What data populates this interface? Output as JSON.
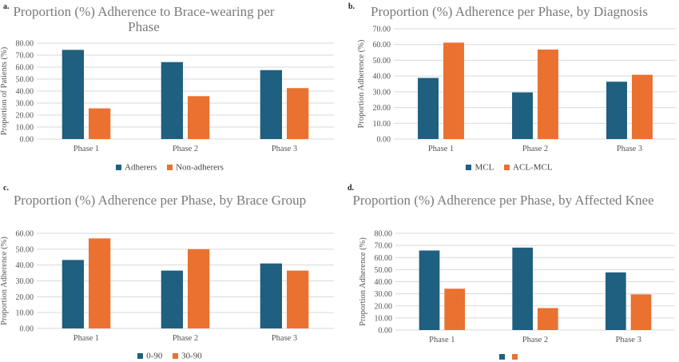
{
  "colors": {
    "series1": "#1f5f7f",
    "series2": "#ea7130",
    "grid": "#d9d9d9",
    "axis_text": "#555555"
  },
  "chart_data": [
    {
      "id": "a",
      "panel_label": "a.",
      "type": "bar",
      "title": "Proportion (%) Adherence to Brace-wearing per Phase",
      "categories": [
        "Phase 1",
        "Phase 2",
        "Phase 3"
      ],
      "series": [
        {
          "name": "Adherers",
          "values": [
            74.4,
            64.2,
            57.5
          ]
        },
        {
          "name": "Non-adherers",
          "values": [
            25.6,
            35.8,
            42.5
          ]
        }
      ],
      "ylabel": "Proportion of Patients (%)",
      "xlabel": "",
      "ylim": [
        0,
        80
      ],
      "yticks": [
        "0.00",
        "10.00",
        "20.00",
        "30.00",
        "40.00",
        "50.00",
        "60.00",
        "70.00",
        "80.00"
      ],
      "grid": true,
      "legend": "bottom"
    },
    {
      "id": "b",
      "panel_label": "b.",
      "type": "bar",
      "title": "Proportion (%) Adherence per Phase, by Diagnosis",
      "categories": [
        "Phase 1",
        "Phase 2",
        "Phase 3"
      ],
      "series": [
        {
          "name": "MCL",
          "values": [
            38.8,
            29.6,
            36.4
          ]
        },
        {
          "name": "ACL-MCL",
          "values": [
            61.2,
            56.8,
            40.8
          ]
        }
      ],
      "ylabel": "Proportion Adherence (%)",
      "xlabel": "",
      "ylim": [
        0,
        70
      ],
      "yticks": [
        "0.00",
        "10.00",
        "20.00",
        "30.00",
        "40.00",
        "50.00",
        "60.00",
        "70.00"
      ],
      "grid": true,
      "legend": "bottom"
    },
    {
      "id": "c",
      "panel_label": "c.",
      "type": "bar",
      "title": "Proportion (%) Adherence per Phase, by Brace Group",
      "categories": [
        "Phase 1",
        "Phase 2",
        "Phase 3"
      ],
      "series": [
        {
          "name": "0-90",
          "values": [
            43.2,
            36.5,
            41.0
          ]
        },
        {
          "name": "30-90",
          "values": [
            56.8,
            50.0,
            36.5
          ]
        }
      ],
      "ylabel": "Proportion Adherence (%)",
      "xlabel": "",
      "ylim": [
        0,
        60
      ],
      "yticks": [
        "0.00",
        "10.00",
        "20.00",
        "30.00",
        "40.00",
        "50.00",
        "60.00"
      ],
      "grid": true,
      "legend": "bottom"
    },
    {
      "id": "d",
      "panel_label": "d.",
      "type": "bar",
      "title": "Proportion (%) Adherence per Phase, by Affected Knee",
      "categories": [
        "Phase 1",
        "Phase 2",
        "Phase 3"
      ],
      "series": [
        {
          "name": "",
          "values": [
            65.8,
            68.2,
            47.7
          ]
        },
        {
          "name": "",
          "values": [
            34.2,
            18.2,
            29.5
          ]
        }
      ],
      "ylabel": "Proportion Adherence (%)",
      "xlabel": "",
      "ylim": [
        0,
        80
      ],
      "yticks": [
        "0.00",
        "10.00",
        "20.00",
        "30.00",
        "40.00",
        "50.00",
        "60.00",
        "70.00",
        "80.00"
      ],
      "grid": true,
      "legend": "bottom"
    }
  ]
}
